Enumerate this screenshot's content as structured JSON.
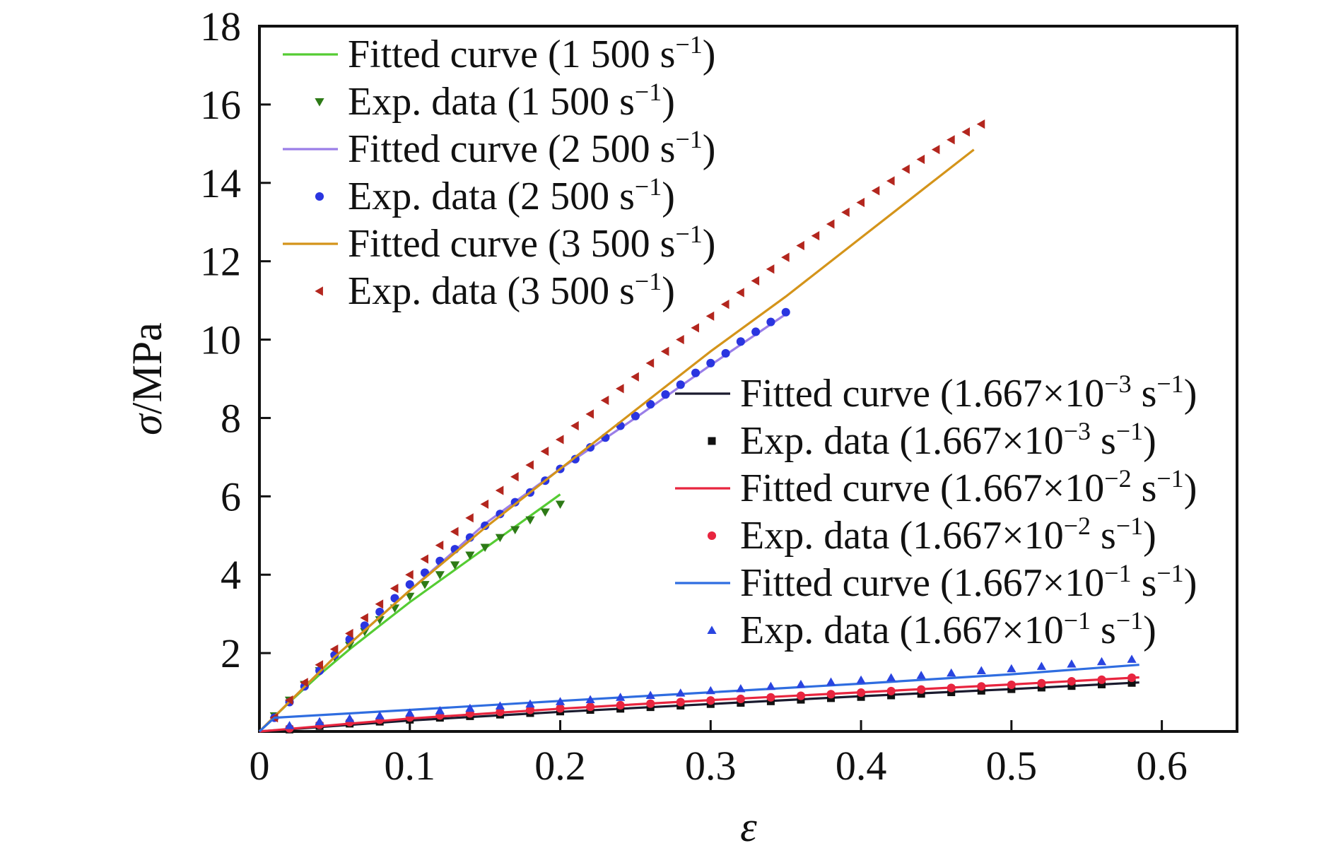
{
  "chart_data": {
    "type": "line",
    "xlabel": "ε",
    "ylabel": "σ/MPa",
    "xlim": [
      0,
      0.65
    ],
    "ylim": [
      0,
      18
    ],
    "xticks": [
      0,
      0.1,
      0.2,
      0.3,
      0.4,
      0.5,
      0.6
    ],
    "xtick_labels": [
      "0",
      "0.1",
      "0.2",
      "0.3",
      "0.4",
      "0.5",
      "0.6"
    ],
    "yticks": [
      2,
      4,
      6,
      8,
      10,
      12,
      14,
      16,
      18
    ],
    "ytick_labels": [
      "2",
      "4",
      "6",
      "8",
      "10",
      "12",
      "14",
      "16",
      "18"
    ],
    "grid": false,
    "legends": [
      {
        "placement": "top-left",
        "entries": [
          {
            "label": "Fitted curve (1 500 s",
            "sup": "−1",
            "tail": ")",
            "series": 0
          },
          {
            "label": "Exp. data (1 500 s",
            "sup": "−1",
            "tail": ")",
            "series": 1
          },
          {
            "label": "Fitted curve (2 500 s",
            "sup": "−1",
            "tail": ")",
            "series": 2
          },
          {
            "label": "Exp. data (2 500 s",
            "sup": "−1",
            "tail": ")",
            "series": 3
          },
          {
            "label": "Fitted curve (3 500 s",
            "sup": "−1",
            "tail": ")",
            "series": 4
          },
          {
            "label": "Exp. data (3 500 s",
            "sup": "−1",
            "tail": ")",
            "series": 5
          }
        ]
      },
      {
        "placement": "center-right",
        "entries": [
          {
            "label": "Fitted curve (1.667×10",
            "sup": "−3",
            "mid": " s",
            "sup2": "−1",
            "tail": ")",
            "series": 6
          },
          {
            "label": "Exp. data (1.667×10",
            "sup": "−3",
            "mid": " s",
            "sup2": "−1",
            "tail": ")",
            "series": 7
          },
          {
            "label": "Fitted curve (1.667×10",
            "sup": "−2",
            "mid": " s",
            "sup2": "−1",
            "tail": ")",
            "series": 8
          },
          {
            "label": "Exp. data (1.667×10",
            "sup": "−2",
            "mid": " s",
            "sup2": "−1",
            "tail": ")",
            "series": 9
          },
          {
            "label": "Fitted curve (1.667×10",
            "sup": "−1",
            "mid": " s",
            "sup2": "−1",
            "tail": ")",
            "series": 10
          },
          {
            "label": "Exp. data (1.667×10",
            "sup": "−1",
            "mid": " s",
            "sup2": "−1",
            "tail": ")",
            "series": 11
          }
        ]
      }
    ],
    "series": [
      {
        "kind": "line",
        "color": "#55cc33",
        "x": [
          0,
          0.02,
          0.04,
          0.06,
          0.08,
          0.1,
          0.12,
          0.14,
          0.16,
          0.18,
          0.2
        ],
        "y": [
          0,
          0.75,
          1.45,
          2.1,
          2.7,
          3.3,
          3.85,
          4.4,
          4.95,
          5.5,
          6.05
        ]
      },
      {
        "kind": "scatter",
        "marker": "triangle-down",
        "color": "#2d7a16",
        "x": [
          0.01,
          0.02,
          0.03,
          0.04,
          0.05,
          0.06,
          0.07,
          0.08,
          0.09,
          0.1,
          0.11,
          0.12,
          0.13,
          0.14,
          0.15,
          0.16,
          0.17,
          0.18,
          0.19,
          0.2
        ],
        "y": [
          0.4,
          0.8,
          1.2,
          1.55,
          1.9,
          2.2,
          2.55,
          2.85,
          3.15,
          3.45,
          3.75,
          4.0,
          4.25,
          4.5,
          4.7,
          4.95,
          5.15,
          5.4,
          5.6,
          5.8
        ]
      },
      {
        "kind": "line",
        "color": "#9a7ee8",
        "x": [
          0,
          0.05,
          0.1,
          0.15,
          0.2,
          0.25,
          0.3,
          0.35
        ],
        "y": [
          0,
          1.9,
          3.6,
          5.3,
          6.7,
          8.0,
          9.35,
          10.65
        ]
      },
      {
        "kind": "scatter",
        "marker": "circle",
        "color": "#2a35e0",
        "x": [
          0.01,
          0.02,
          0.03,
          0.04,
          0.05,
          0.06,
          0.07,
          0.08,
          0.09,
          0.1,
          0.11,
          0.12,
          0.13,
          0.14,
          0.15,
          0.16,
          0.17,
          0.18,
          0.19,
          0.2,
          0.21,
          0.22,
          0.23,
          0.24,
          0.25,
          0.26,
          0.27,
          0.28,
          0.29,
          0.3,
          0.31,
          0.32,
          0.33,
          0.34,
          0.35
        ],
        "y": [
          0.35,
          0.75,
          1.15,
          1.55,
          1.95,
          2.35,
          2.7,
          3.05,
          3.4,
          3.75,
          4.05,
          4.35,
          4.65,
          4.95,
          5.25,
          5.55,
          5.85,
          6.1,
          6.4,
          6.7,
          6.95,
          7.25,
          7.5,
          7.8,
          8.05,
          8.35,
          8.6,
          8.85,
          9.15,
          9.4,
          9.65,
          9.95,
          10.2,
          10.45,
          10.7
        ]
      },
      {
        "kind": "line",
        "color": "#d4941a",
        "x": [
          0,
          0.05,
          0.1,
          0.15,
          0.2,
          0.25,
          0.3,
          0.35,
          0.4,
          0.45,
          0.475
        ],
        "y": [
          0,
          1.9,
          3.6,
          5.2,
          6.7,
          8.2,
          9.7,
          11.1,
          12.6,
          14.1,
          14.85
        ]
      },
      {
        "kind": "scatter",
        "marker": "triangle-left",
        "color": "#b3261e",
        "x": [
          0.01,
          0.02,
          0.03,
          0.04,
          0.05,
          0.06,
          0.07,
          0.08,
          0.09,
          0.1,
          0.11,
          0.12,
          0.13,
          0.14,
          0.15,
          0.16,
          0.17,
          0.18,
          0.19,
          0.2,
          0.21,
          0.22,
          0.23,
          0.24,
          0.25,
          0.26,
          0.27,
          0.28,
          0.29,
          0.3,
          0.31,
          0.32,
          0.33,
          0.34,
          0.35,
          0.36,
          0.37,
          0.38,
          0.39,
          0.4,
          0.41,
          0.42,
          0.43,
          0.44,
          0.45,
          0.46,
          0.47,
          0.48
        ],
        "y": [
          0.35,
          0.8,
          1.25,
          1.7,
          2.1,
          2.5,
          2.9,
          3.25,
          3.65,
          4.0,
          4.4,
          4.75,
          5.1,
          5.45,
          5.8,
          6.15,
          6.5,
          6.8,
          7.15,
          7.45,
          7.8,
          8.1,
          8.45,
          8.75,
          9.05,
          9.4,
          9.7,
          10.0,
          10.3,
          10.6,
          10.9,
          11.2,
          11.5,
          11.8,
          12.1,
          12.4,
          12.65,
          12.95,
          13.25,
          13.5,
          13.8,
          14.05,
          14.35,
          14.6,
          14.85,
          15.1,
          15.3,
          15.5
        ]
      },
      {
        "kind": "line",
        "color": "#1a1a2e",
        "x": [
          0,
          0.1,
          0.2,
          0.3,
          0.4,
          0.5,
          0.585
        ],
        "y": [
          0,
          0.28,
          0.5,
          0.7,
          0.9,
          1.08,
          1.25
        ]
      },
      {
        "kind": "scatter",
        "marker": "square",
        "color": "#111111",
        "x": [
          0.02,
          0.04,
          0.06,
          0.08,
          0.1,
          0.12,
          0.14,
          0.16,
          0.18,
          0.2,
          0.22,
          0.24,
          0.26,
          0.28,
          0.3,
          0.32,
          0.34,
          0.36,
          0.38,
          0.4,
          0.42,
          0.44,
          0.46,
          0.48,
          0.5,
          0.52,
          0.54,
          0.56,
          0.58
        ],
        "y": [
          0.05,
          0.14,
          0.2,
          0.25,
          0.3,
          0.35,
          0.39,
          0.43,
          0.47,
          0.51,
          0.55,
          0.58,
          0.62,
          0.66,
          0.7,
          0.73,
          0.77,
          0.81,
          0.85,
          0.88,
          0.92,
          0.96,
          1.0,
          1.04,
          1.08,
          1.12,
          1.16,
          1.2,
          1.24
        ]
      },
      {
        "kind": "line",
        "color": "#e8253f",
        "x": [
          0,
          0.1,
          0.2,
          0.3,
          0.4,
          0.5,
          0.585
        ],
        "y": [
          0,
          0.33,
          0.58,
          0.8,
          1.0,
          1.2,
          1.38
        ]
      },
      {
        "kind": "scatter",
        "marker": "circle",
        "color": "#e8253f",
        "x": [
          0.02,
          0.04,
          0.06,
          0.08,
          0.1,
          0.12,
          0.14,
          0.16,
          0.18,
          0.2,
          0.22,
          0.24,
          0.26,
          0.28,
          0.3,
          0.32,
          0.34,
          0.36,
          0.38,
          0.4,
          0.42,
          0.44,
          0.46,
          0.48,
          0.5,
          0.52,
          0.54,
          0.56,
          0.58
        ],
        "y": [
          0.08,
          0.17,
          0.24,
          0.3,
          0.36,
          0.41,
          0.46,
          0.5,
          0.55,
          0.59,
          0.63,
          0.67,
          0.71,
          0.75,
          0.79,
          0.83,
          0.87,
          0.91,
          0.95,
          0.99,
          1.03,
          1.07,
          1.11,
          1.15,
          1.19,
          1.23,
          1.28,
          1.32,
          1.37
        ]
      },
      {
        "kind": "line",
        "color": "#2f6de0",
        "x": [
          0,
          0.01,
          0.1,
          0.2,
          0.3,
          0.4,
          0.5,
          0.585
        ],
        "y": [
          0,
          0.35,
          0.55,
          0.78,
          1.0,
          1.22,
          1.46,
          1.7
        ]
      },
      {
        "kind": "scatter",
        "marker": "triangle-up",
        "color": "#2a45e0",
        "x": [
          0.02,
          0.04,
          0.06,
          0.08,
          0.1,
          0.12,
          0.14,
          0.16,
          0.18,
          0.2,
          0.22,
          0.24,
          0.26,
          0.28,
          0.3,
          0.32,
          0.34,
          0.36,
          0.38,
          0.4,
          0.42,
          0.44,
          0.46,
          0.48,
          0.5,
          0.52,
          0.54,
          0.56,
          0.58
        ],
        "y": [
          0.15,
          0.25,
          0.33,
          0.4,
          0.47,
          0.53,
          0.59,
          0.65,
          0.7,
          0.76,
          0.81,
          0.87,
          0.92,
          0.98,
          1.04,
          1.09,
          1.15,
          1.2,
          1.26,
          1.31,
          1.37,
          1.43,
          1.49,
          1.55,
          1.6,
          1.66,
          1.72,
          1.78,
          1.84
        ]
      }
    ]
  }
}
